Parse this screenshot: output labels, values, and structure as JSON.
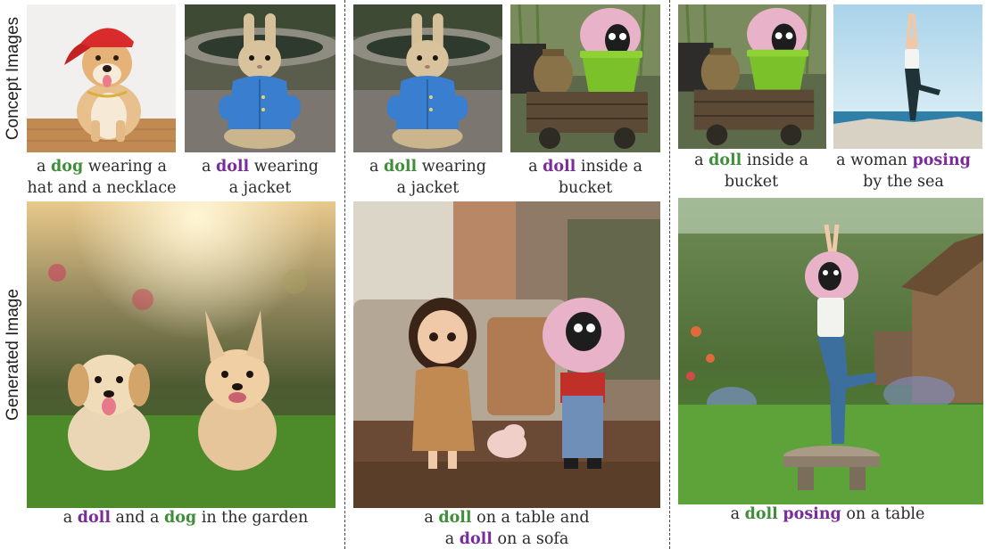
{
  "figure": {
    "row_labels": {
      "concept": "Concept Images",
      "generated": "Generated Image"
    },
    "keyword_colors": {
      "dog": "#3e8e3a",
      "doll": "#7a2d9a",
      "posing": "#7a2d9a"
    },
    "groups": [
      {
        "concepts": [
          {
            "image": "shiba-dog-red-cap-necklace",
            "caption": [
              [
                {
                  "t": "a "
                },
                {
                  "t": "dog",
                  "k": "dog",
                  "c": "#3e8e3a"
                },
                {
                  "t": " wearing a"
                }
              ],
              [
                {
                  "t": "hat and a necklace"
                }
              ]
            ]
          },
          {
            "image": "plush-rabbit-blue-jacket",
            "caption": [
              [
                {
                  "t": "a "
                },
                {
                  "t": "doll",
                  "k": "doll",
                  "c": "#7a2d9a"
                },
                {
                  "t": " wearing"
                }
              ],
              [
                {
                  "t": "a jacket"
                }
              ]
            ]
          }
        ],
        "generated": {
          "image": "puppy-and-bunny-dog-on-grass",
          "caption": [
            [
              {
                "t": "a "
              },
              {
                "t": "doll",
                "k": "doll",
                "c": "#7a2d9a"
              },
              {
                "t": " and a "
              },
              {
                "t": "dog",
                "k": "dog",
                "c": "#3e8e3a"
              },
              {
                "t": " in the garden"
              }
            ]
          ]
        }
      },
      {
        "concepts": [
          {
            "image": "plush-rabbit-blue-jacket",
            "caption": [
              [
                {
                  "t": "a "
                },
                {
                  "t": "doll",
                  "k": "doll",
                  "c": "#3e8e3a"
                },
                {
                  "t": " wearing"
                }
              ],
              [
                {
                  "t": "a jacket"
                }
              ]
            ]
          },
          {
            "image": "pink-sheep-in-green-bucket",
            "caption": [
              [
                {
                  "t": "a "
                },
                {
                  "t": "doll",
                  "k": "doll",
                  "c": "#7a2d9a"
                },
                {
                  "t": " inside a"
                }
              ],
              [
                {
                  "t": "bucket"
                }
              ]
            ]
          }
        ],
        "generated": {
          "image": "girl-doll-and-sheep-doll-on-table",
          "caption": [
            [
              {
                "t": "a "
              },
              {
                "t": "doll",
                "k": "doll",
                "c": "#3e8e3a"
              },
              {
                "t": " on a table and"
              }
            ],
            [
              {
                "t": "a "
              },
              {
                "t": "doll",
                "k": "doll",
                "c": "#7a2d9a"
              },
              {
                "t": " on a sofa"
              }
            ]
          ]
        }
      },
      {
        "concepts": [
          {
            "image": "pink-sheep-in-green-bucket",
            "caption": [
              [
                {
                  "t": "a "
                },
                {
                  "t": "doll",
                  "k": "doll",
                  "c": "#3e8e3a"
                },
                {
                  "t": " inside a"
                }
              ],
              [
                {
                  "t": "bucket"
                }
              ]
            ]
          },
          {
            "image": "woman-yoga-pose-by-sea",
            "caption": [
              [
                {
                  "t": "a woman "
                },
                {
                  "t": "posing",
                  "k": "posing",
                  "c": "#7a2d9a"
                }
              ],
              [
                {
                  "t": "by the sea"
                }
              ]
            ]
          }
        ],
        "generated": {
          "image": "sheep-doll-yoga-pose-on-table",
          "caption": [
            [
              {
                "t": "a "
              },
              {
                "t": "doll",
                "k": "doll",
                "c": "#3e8e3a"
              },
              {
                "t": " "
              },
              {
                "t": "posing",
                "k": "posing",
                "c": "#7a2d9a"
              },
              {
                "t": " on a table"
              }
            ]
          ]
        }
      }
    ]
  }
}
